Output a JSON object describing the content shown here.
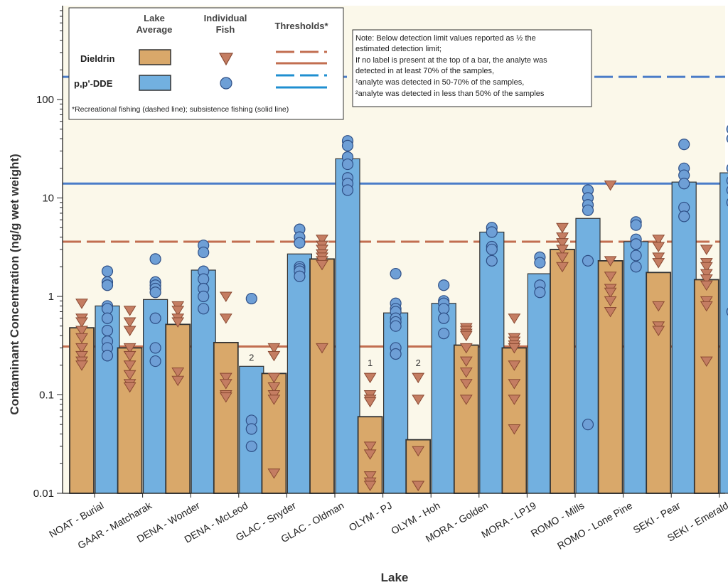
{
  "chart_data": {
    "type": "bar",
    "scale": "log",
    "xlabel": "Lake",
    "ylabel": "Contaminant Concentration (ng/g wet weight)",
    "ylim": [
      0.01,
      600
    ],
    "y_ticks": [
      {
        "value": 0.01,
        "label": "0.01"
      },
      {
        "value": 0.1,
        "label": "0.1"
      },
      {
        "value": 1,
        "label": "1"
      },
      {
        "value": 10,
        "label": "10"
      },
      {
        "value": 100,
        "label": "100"
      }
    ],
    "categories": [
      "NOAT - Burial",
      "GAAR - Matcharak",
      "DENA - Wonder",
      "DENA - McLeod",
      "GLAC - Snyder",
      "GLAC - Oldman",
      "OLYM - PJ",
      "OLYM - Hoh",
      "MORA - Golden",
      "MORA - LP19",
      "ROMO - Mills",
      "ROMO - Lone Pine",
      "SEKI - Pear",
      "SEKI - Emerald"
    ],
    "series": [
      {
        "name": "Dieldrin",
        "color": "#d9a86a",
        "marker": "triangle-down",
        "lake_average": [
          0.48,
          0.3,
          0.52,
          0.34,
          0.165,
          2.4,
          0.06,
          0.035,
          0.32,
          0.3,
          3.0,
          2.3,
          1.75,
          1.48
        ],
        "individual_fish": [
          [
            0.85,
            0.6,
            0.55,
            0.45,
            0.38,
            0.3,
            0.25,
            0.22,
            0.2
          ],
          [
            0.72,
            0.55,
            0.45,
            0.3,
            0.25,
            0.2,
            0.16,
            0.13,
            0.12
          ],
          [
            0.8,
            0.72,
            0.6,
            0.55,
            0.17,
            0.14
          ],
          [
            1.0,
            0.6,
            0.15,
            0.13,
            0.1,
            0.095
          ],
          [
            0.3,
            0.25,
            0.15,
            0.12,
            0.1,
            0.09,
            0.016
          ],
          [
            3.8,
            3.3,
            3.0,
            2.7,
            2.5,
            2.3,
            2.1,
            0.3
          ],
          [
            0.15,
            0.1,
            0.09,
            0.085,
            0.03,
            0.025,
            0.015,
            0.013,
            0.012
          ],
          [
            0.15,
            0.09,
            0.027,
            0.012,
            0.012
          ],
          [
            0.48,
            0.45,
            0.42,
            0.4,
            0.3,
            0.22,
            0.17,
            0.13,
            0.09
          ],
          [
            0.6,
            0.38,
            0.35,
            0.32,
            0.3,
            0.2,
            0.13,
            0.09,
            0.045
          ],
          [
            5.0,
            4.0,
            3.5,
            3.0,
            2.5,
            2.0
          ],
          [
            13.5,
            2.3,
            1.6,
            1.2,
            1.1,
            0.9,
            0.7
          ],
          [
            3.8,
            3.2,
            2.5,
            2.2,
            0.8,
            0.5,
            0.45
          ],
          [
            3.0,
            2.2,
            2.0,
            1.7,
            1.5,
            1.3,
            0.9,
            0.8,
            0.22
          ]
        ]
      },
      {
        "name": "p,p'-DDE",
        "color": "#72b0e0",
        "marker": "circle",
        "lake_average": [
          0.8,
          0.93,
          1.85,
          0.195,
          2.7,
          25,
          0.68,
          0.85,
          4.5,
          1.7,
          6.2,
          3.6,
          14.5,
          18
        ],
        "individual_fish": [
          [
            1.8,
            1.4,
            1.3,
            0.8,
            0.75,
            0.6,
            0.45,
            0.35,
            0.3,
            0.25
          ],
          [
            2.4,
            1.4,
            1.3,
            1.2,
            1.1,
            0.6,
            0.3,
            0.22
          ],
          [
            3.3,
            2.8,
            1.8,
            1.5,
            1.2,
            1.0,
            0.75
          ],
          [
            0.95,
            0.055,
            0.045,
            0.03
          ],
          [
            4.8,
            4.0,
            3.5,
            2.0,
            1.9,
            1.8,
            1.6
          ],
          [
            38,
            34,
            26,
            22,
            16,
            14,
            12
          ],
          [
            1.7,
            0.85,
            0.75,
            0.7,
            0.6,
            0.55,
            0.5,
            0.3,
            0.26
          ],
          [
            1.3,
            0.9,
            0.85,
            0.75,
            0.6,
            0.42
          ],
          [
            5.0,
            4.5,
            3.2,
            3.0,
            2.3
          ],
          [
            2.5,
            2.2,
            1.3,
            1.1
          ],
          [
            12,
            10,
            8.5,
            7.5,
            2.3,
            0.05
          ],
          [
            5.7,
            5.3,
            3.8,
            3.4,
            2.6,
            2.0
          ],
          [
            35,
            20,
            17,
            14,
            8,
            6.5
          ],
          [
            50,
            40,
            20,
            15,
            12,
            9,
            0.7
          ]
        ]
      }
    ],
    "bar_annotations": [
      {
        "category": "DENA - McLeod",
        "series": "p,p'-DDE",
        "text": "2"
      },
      {
        "category": "OLYM - PJ",
        "series": "Dieldrin",
        "text": "1"
      },
      {
        "category": "OLYM - Hoh",
        "series": "Dieldrin",
        "text": "2"
      }
    ],
    "thresholds": [
      {
        "analyte": "Dieldrin",
        "type": "recreational",
        "style": "dashed",
        "value": 3.6,
        "color": "#c26e50"
      },
      {
        "analyte": "Dieldrin",
        "type": "subsistence",
        "style": "solid",
        "value": 0.31,
        "color": "#c26e50"
      },
      {
        "analyte": "p,p'-DDE",
        "type": "recreational",
        "style": "dashed",
        "value": 170,
        "color": "#4a7cc8"
      },
      {
        "analyte": "p,p'-DDE",
        "type": "subsistence",
        "style": "solid",
        "value": 14,
        "color": "#4a7cc8"
      }
    ],
    "legend": {
      "placement": "top-left",
      "col_lake_average": "Lake Average",
      "col_individual_fish": "Individual Fish",
      "col_thresholds": "Thresholds*",
      "row_dieldrin": "Dieldrin",
      "row_dde": "p,p'-DDE",
      "footnote": "*Recreational fishing (dashed line); subsistence fishing (solid line)"
    },
    "note": {
      "placement": "top-center",
      "lines": [
        "Note: Below detection limit values reported as ½ the",
        "estimated detection limit;",
        "If no label is present at the top of a bar, the analyte was",
        "detected in at least 70% of the samples,",
        "¹analyte was detected in 50-70% of the samples,",
        "²analyte was detected in less than 50% of the samples"
      ]
    },
    "colors": {
      "plot_background": "#fbf8ea",
      "bar_outline": "#333333",
      "triangle_fill": "#c47d62",
      "triangle_stroke": "#8a4a33",
      "circle_fill": "#6e9fd6",
      "circle_stroke": "#2e4f86"
    }
  }
}
